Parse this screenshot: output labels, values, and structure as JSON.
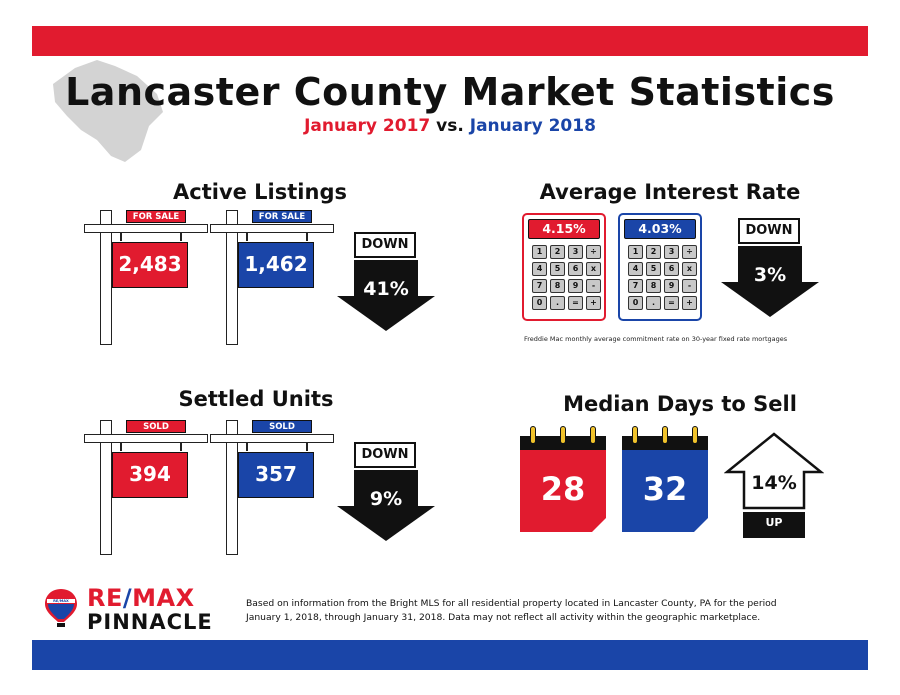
{
  "header": {
    "title": "Lancaster County Market Statistics",
    "subtitle_left": "January 2017",
    "subtitle_mid": "vs.",
    "subtitle_right": "January 2018"
  },
  "colors": {
    "red": "#e11b2f",
    "blue": "#1a45a8",
    "gold": "#f0c22b"
  },
  "active_listings": {
    "title": "Active Listings",
    "tag_2017": "FOR SALE",
    "tag_2018": "FOR SALE",
    "value_2017": "2,483",
    "value_2018": "1,462",
    "direction": "DOWN",
    "change": "41%"
  },
  "interest_rate": {
    "title": "Average Interest Rate",
    "value_2017": "4.15%",
    "value_2018": "4.03%",
    "keys": [
      "1",
      "2",
      "3",
      "÷",
      "4",
      "5",
      "6",
      "x",
      "7",
      "8",
      "9",
      "-",
      "0",
      ".",
      "=",
      "+"
    ],
    "direction": "DOWN",
    "change": "3%",
    "footnote": "Freddie Mac monthly average commitment rate on 30-year fixed rate mortgages"
  },
  "settled_units": {
    "title": "Settled Units",
    "tag_2017": "SOLD",
    "tag_2018": "SOLD",
    "value_2017": "394",
    "value_2018": "357",
    "direction": "DOWN",
    "change": "9%"
  },
  "days_to_sell": {
    "title": "Median Days to Sell",
    "value_2017": "28",
    "value_2018": "32",
    "direction": "UP",
    "change": "14%"
  },
  "footer": {
    "logo_remax_1": "RE",
    "logo_remax_slash": "/",
    "logo_remax_2": "MAX",
    "logo_balloon_text": "RE/MAX",
    "logo_pinnacle": "PINNACLE",
    "disclaimer_line1": "Based on information from the Bright MLS for all residential property located in Lancaster County, PA for the period",
    "disclaimer_line2": "January 1, 2018, through January 31, 2018.  Data may not reflect all activity within the geographic marketplace."
  }
}
